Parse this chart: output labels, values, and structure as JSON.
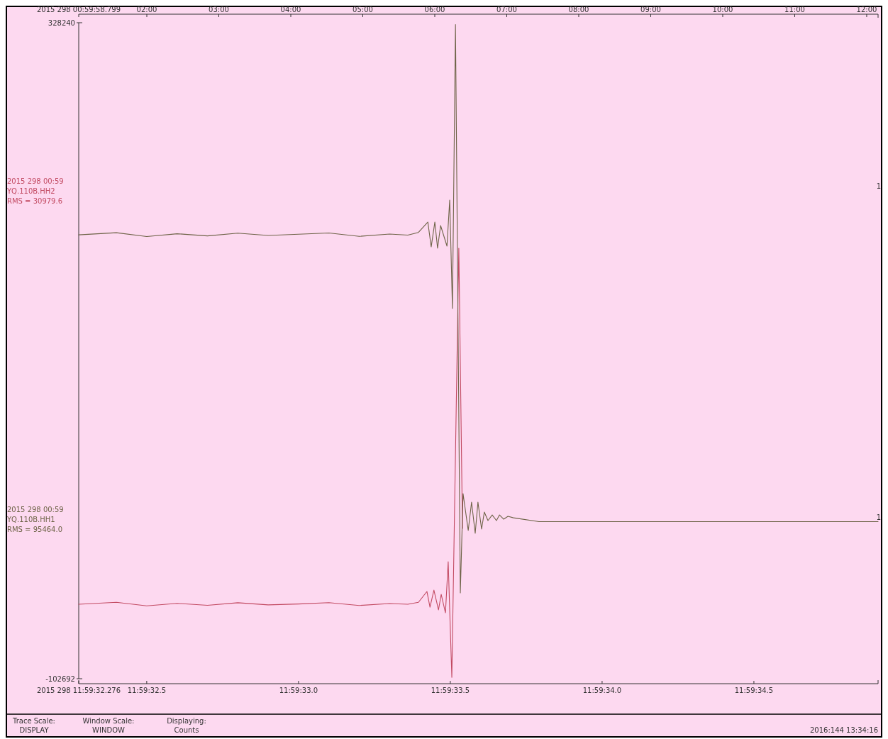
{
  "chart_data": {
    "type": "line",
    "xlim": [
      "2015-10-25T11:59:32.276",
      "2015-10-25T11:59:34.909"
    ],
    "xticks": [
      {
        "value": "2015-10-25T11:59:32.276",
        "label": "2015 298 11:59:32.276"
      },
      {
        "value": "2015-10-25T11:59:32.500",
        "label": "11:59:32.5"
      },
      {
        "value": "2015-10-25T11:59:33.000",
        "label": "11:59:33.0"
      },
      {
        "value": "2015-10-25T11:59:33.500",
        "label": "11:59:33.5"
      },
      {
        "value": "2015-10-25T11:59:34.000",
        "label": "11:59:34.0"
      },
      {
        "value": "2015-10-25T11:59:34.500",
        "label": "11:59:34.5"
      }
    ],
    "x2lim": [
      1.054,
      12.158
    ],
    "x2ticks": [
      {
        "value": 1.054,
        "label": "2015 298 00:59:58.799"
      },
      {
        "value": 2,
        "label": "02:00"
      },
      {
        "value": 3,
        "label": "03:00"
      },
      {
        "value": 4,
        "label": "04:00"
      },
      {
        "value": 5,
        "label": "05:00"
      },
      {
        "value": 6,
        "label": "06:00"
      },
      {
        "value": 7,
        "label": "07:00"
      },
      {
        "value": 8,
        "label": "08:00"
      },
      {
        "value": 9,
        "label": "09:00"
      },
      {
        "value": 10,
        "label": "10:00"
      },
      {
        "value": 11,
        "label": "11:00"
      },
      {
        "value": 12,
        "label": "12:00"
      }
    ],
    "ylim": [
      -102692,
      328240
    ],
    "yticks": [
      328240,
      -102692
    ],
    "annotations": [
      "2015 298 00:59",
      "RMS = 30979.6",
      "1",
      "2015 298 00:59",
      "RMS = 95464.0",
      "1",
      "Trace Scale:",
      "DISPLAY",
      "Window Scale:",
      "WINDOW",
      "Displaying:",
      "Counts",
      "2016:144 13:34:16"
    ],
    "series": [
      {
        "name": "YQ.110B.HH2",
        "color": "#c24a62",
        "x": [
          "2015-10-25T11:59:32.276",
          "2015-10-25T11:59:32.400",
          "2015-10-25T11:59:32.500",
          "2015-10-25T11:59:32.600",
          "2015-10-25T11:59:32.700",
          "2015-10-25T11:59:32.800",
          "2015-10-25T11:59:32.900",
          "2015-10-25T11:59:33.000",
          "2015-10-25T11:59:33.100",
          "2015-10-25T11:59:33.200",
          "2015-10-25T11:59:33.300",
          "2015-10-25T11:59:33.360",
          "2015-10-25T11:59:33.395",
          "2015-10-25T11:59:33.423",
          "2015-10-25T11:59:33.433",
          "2015-10-25T11:59:33.446",
          "2015-10-25T11:59:33.461",
          "2015-10-25T11:59:33.470",
          "2015-10-25T11:59:33.484",
          "2015-10-25T11:59:33.493",
          "2015-10-25T11:59:33.505",
          "2015-10-25T11:59:33.528",
          "2015-10-25T11:59:33.540"
        ],
        "values": [
          -53800,
          -52500,
          -54800,
          -53200,
          -54500,
          -52800,
          -54200,
          -53600,
          -52700,
          -54600,
          -53300,
          -53800,
          -52500,
          -45400,
          -55700,
          -44500,
          -57500,
          -47300,
          -59400,
          -25800,
          -101800,
          180100,
          -3900
        ]
      },
      {
        "name": "YQ.110B.HH1",
        "color": "#6f6448",
        "x": [
          "2015-10-25T11:59:32.276",
          "2015-10-25T11:59:32.400",
          "2015-10-25T11:59:32.500",
          "2015-10-25T11:59:32.600",
          "2015-10-25T11:59:32.700",
          "2015-10-25T11:59:32.800",
          "2015-10-25T11:59:32.900",
          "2015-10-25T11:59:33.000",
          "2015-10-25T11:59:33.100",
          "2015-10-25T11:59:33.200",
          "2015-10-25T11:59:33.300",
          "2015-10-25T11:59:33.360",
          "2015-10-25T11:59:33.395",
          "2015-10-25T11:59:33.426",
          "2015-10-25T11:59:33.437",
          "2015-10-25T11:59:33.449",
          "2015-10-25T11:59:33.458",
          "2015-10-25T11:59:33.468",
          "2015-10-25T11:59:33.489",
          "2015-10-25T11:59:33.498",
          "2015-10-25T11:59:33.507",
          "2015-10-25T11:59:33.517",
          "2015-10-25T11:59:33.533",
          "2015-10-25T11:59:33.542",
          "2015-10-25T11:59:33.559",
          "2015-10-25T11:59:33.570",
          "2015-10-25T11:59:33.582",
          "2015-10-25T11:59:33.591",
          "2015-10-25T11:59:33.603",
          "2015-10-25T11:59:33.612",
          "2015-10-25T11:59:33.624",
          "2015-10-25T11:59:33.638",
          "2015-10-25T11:59:33.652",
          "2015-10-25T11:59:33.662",
          "2015-10-25T11:59:33.676",
          "2015-10-25T11:59:33.690",
          "2015-10-25T11:59:33.708",
          "2015-10-25T11:59:33.792",
          "2015-10-25T11:59:34.909"
        ],
        "values": [
          188900,
          190300,
          187800,
          189600,
          188200,
          190000,
          188500,
          189300,
          190100,
          187900,
          189400,
          188700,
          190500,
          197300,
          181000,
          197300,
          180100,
          195000,
          181500,
          211800,
          140500,
          327000,
          -46300,
          18900,
          -5300,
          13300,
          -7200,
          13300,
          -4400,
          6800,
          1200,
          4900,
          1200,
          4900,
          2100,
          4000,
          3000,
          500,
          500
        ]
      }
    ]
  }
}
